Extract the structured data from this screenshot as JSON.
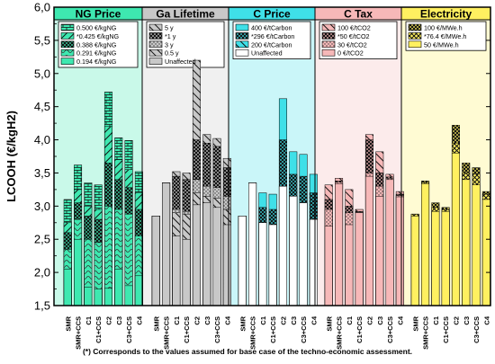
{
  "chart_data": {
    "type": "bar",
    "ylabel": "LCOOH (€/kgH2)",
    "ylim": [
      1.5,
      6.0
    ],
    "yticks": [
      "1,5",
      "2,0",
      "2,5",
      "3,0",
      "3,5",
      "4,0",
      "4,5",
      "5,0",
      "5,5",
      "6,0"
    ],
    "footnote": "(*) Corresponds to the values assumed for base case of the techno-economic assessment.",
    "categories": [
      "SMR",
      "SMR+CCS",
      "C1",
      "C1+CCS",
      "C2",
      "C3",
      "C3+CCS",
      "C4"
    ],
    "panels": [
      {
        "title": "NG Price",
        "color": "#3ee8b0",
        "legend": [
          "0.500 €/kgNG",
          "*0.425 €/kgNG",
          "0.388 €/kgNG",
          "0.291 €/kgNG",
          "0.194 €/kgNG"
        ],
        "values": [
          [
            3.1,
            3.62,
            3.35,
            3.32,
            4.72,
            4.03,
            3.99,
            3.52
          ],
          [
            2.75,
            3.25,
            3.0,
            2.95,
            4.2,
            3.7,
            3.55,
            3.2
          ],
          [
            2.6,
            3.05,
            2.85,
            2.8,
            3.65,
            3.4,
            3.28,
            2.95
          ],
          [
            2.35,
            2.8,
            2.5,
            2.45,
            3.0,
            2.95,
            2.88,
            2.55
          ],
          [
            2.05,
            2.5,
            1.78,
            1.75,
            1.76,
            2.05,
            1.8,
            1.95
          ]
        ]
      },
      {
        "title": "Ga Lifetime",
        "color": "#c8c8c8",
        "legend": [
          "5 y",
          "*1 y",
          "3 y",
          "0.5 y",
          "Unaffected"
        ],
        "values": [
          [
            2.85,
            3.35,
            3.52,
            3.5,
            5.2,
            4.08,
            4.02,
            3.72
          ],
          [
            2.85,
            3.35,
            3.45,
            3.4,
            4.0,
            3.95,
            3.9,
            3.58
          ],
          [
            2.85,
            3.35,
            2.95,
            2.92,
            3.4,
            3.3,
            3.28,
            3.15
          ],
          [
            2.85,
            3.35,
            2.9,
            2.88,
            3.2,
            3.15,
            3.12,
            2.95
          ],
          [
            2.85,
            3.35,
            2.55,
            2.5,
            3.02,
            3.05,
            2.98,
            2.72
          ]
        ]
      },
      {
        "title": "C Price",
        "color": "#3fe0e8",
        "legend": [
          "400 €/tCarbon",
          "*296 €/tCarbon",
          "200 €/tCarbon",
          "Unaffected"
        ],
        "values": [
          [
            2.85,
            3.35,
            3.2,
            3.18,
            4.62,
            3.82,
            3.78,
            3.48
          ],
          [
            2.85,
            3.35,
            2.98,
            2.95,
            4.0,
            3.48,
            3.45,
            3.2
          ],
          [
            2.85,
            3.35,
            2.75,
            2.72,
            3.3,
            3.15,
            3.05,
            2.8
          ],
          [
            2.85,
            3.35,
            2.75,
            2.72,
            3.3,
            3.15,
            3.05,
            2.8
          ]
        ]
      },
      {
        "title": "C Tax",
        "color": "#f6b8b8",
        "legend": [
          "100 €/tCO2",
          "*50 €/tCO2",
          "30 €/tCO2",
          "0 €/tCO2"
        ],
        "values": [
          [
            3.32,
            3.42,
            3.25,
            2.95,
            4.08,
            3.82,
            3.48,
            3.22
          ],
          [
            3.1,
            3.38,
            3.0,
            2.92,
            4.0,
            3.5,
            3.44,
            3.18
          ],
          [
            2.95,
            3.36,
            2.9,
            2.91,
            3.5,
            3.3,
            3.42,
            3.16
          ],
          [
            2.7,
            3.34,
            2.72,
            2.9,
            3.45,
            3.15,
            3.4,
            3.14
          ]
        ]
      },
      {
        "title": "Electricity",
        "color": "#fff060",
        "legend": [
          "100 €/MWe.h",
          "*76.4 €/MWe.h",
          "50 €/MWe.h"
        ],
        "values": [
          [
            2.88,
            3.38,
            3.05,
            2.98,
            4.22,
            3.65,
            3.58,
            3.22
          ],
          [
            2.88,
            3.36,
            2.98,
            2.95,
            3.95,
            3.5,
            3.48,
            3.18
          ],
          [
            2.85,
            3.34,
            2.92,
            2.92,
            3.8,
            3.4,
            3.32,
            3.1
          ]
        ]
      }
    ]
  }
}
